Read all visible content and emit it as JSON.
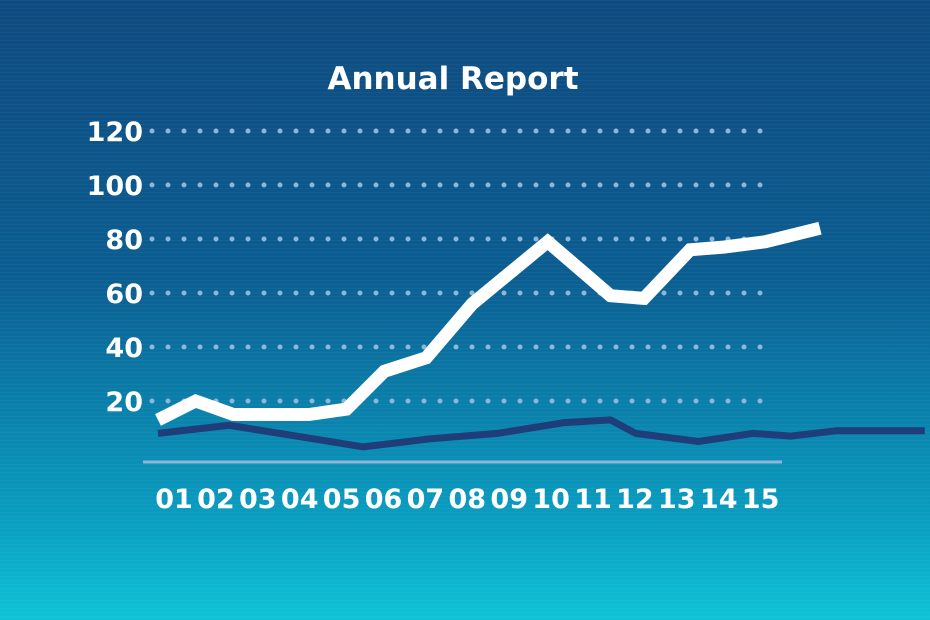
{
  "colors": {
    "background_top": "#0f4a7f",
    "background_bottom": "#0fc3d6",
    "grid_dots": "#8fb6d6",
    "baseline": "#8fb6d6",
    "series_primary": "#ffffff",
    "series_secondary": "#1f3d78"
  },
  "chart_data": {
    "type": "line",
    "title": "Annual Report",
    "xlabel": "",
    "ylabel": "",
    "grid": "dotted horizontal",
    "legend": "none",
    "ylim": [
      0,
      120
    ],
    "y_ticks": [
      "120",
      "100",
      "80",
      "60",
      "40",
      "20"
    ],
    "y_tick_values": [
      120,
      100,
      80,
      60,
      40,
      20
    ],
    "categories": [
      "01",
      "02",
      "03",
      "04",
      "05",
      "06",
      "07",
      "08",
      "09",
      "10",
      "11",
      "12",
      "13",
      "14",
      "15"
    ],
    "series": [
      {
        "color": "#ffffff",
        "x": [
          0,
          0.9,
          1.8,
          3.6,
          4.5,
          5.4,
          6.4,
          7.5,
          9.3,
          10.8,
          11.6,
          12.7,
          13.5,
          14.5,
          15.8
        ],
        "values": [
          13,
          20,
          15,
          15,
          17,
          31,
          36,
          56,
          79,
          59,
          58,
          76,
          77,
          79,
          84
        ]
      },
      {
        "color": "#1f3d78",
        "x": [
          0,
          1.7,
          3.3,
          4.9,
          6.5,
          8.1,
          9.7,
          10.8,
          11.4,
          12.9,
          14.2,
          15.1,
          16.2,
          17.3,
          18.3
        ],
        "values": [
          8,
          11,
          7,
          3,
          6,
          8,
          12,
          13,
          8,
          5,
          8,
          7,
          9,
          9,
          9
        ]
      }
    ]
  }
}
